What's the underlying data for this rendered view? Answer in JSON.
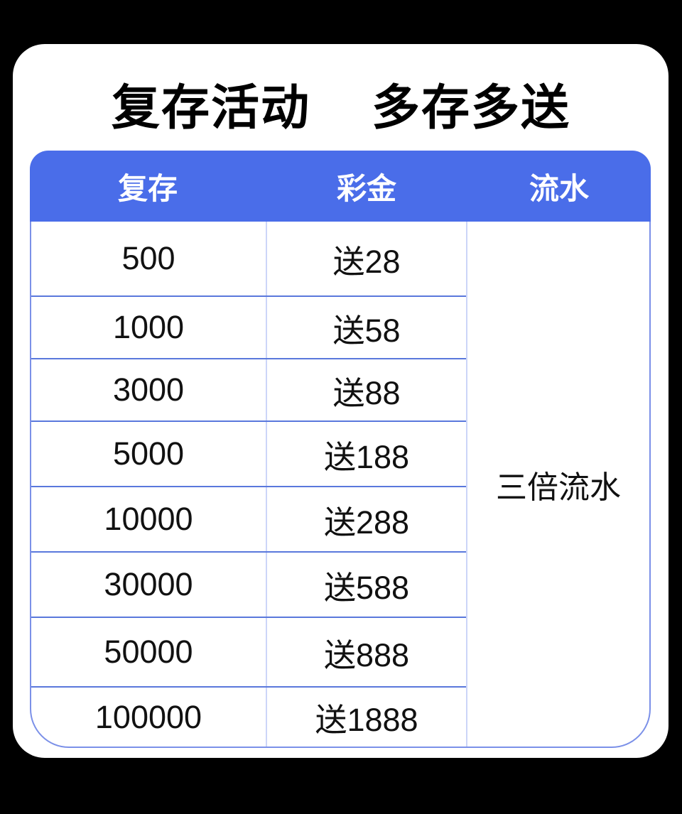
{
  "colors": {
    "page-bg": "#000000",
    "card-bg": "#ffffff",
    "header-bg": "#4a6de9",
    "header-text": "#ffffff",
    "row-line": "#5a78dc",
    "col-line": "#ccd5f8",
    "outer-line": "#7b90e8",
    "cell-text": "#111111",
    "title-text": "#000000"
  },
  "title": {
    "part1": "复存活动",
    "part2": "多存多送"
  },
  "table": {
    "columns": [
      {
        "key": "deposit",
        "label": "复存"
      },
      {
        "key": "bonus",
        "label": "彩金"
      },
      {
        "key": "turnover",
        "label": "流水"
      }
    ],
    "rows": [
      {
        "deposit": "500",
        "bonus": "送28"
      },
      {
        "deposit": "1000",
        "bonus": "送58"
      },
      {
        "deposit": "3000",
        "bonus": "送88"
      },
      {
        "deposit": "5000",
        "bonus": "送188"
      },
      {
        "deposit": "10000",
        "bonus": "送288"
      },
      {
        "deposit": "30000",
        "bonus": "送588"
      },
      {
        "deposit": "50000",
        "bonus": "送888"
      },
      {
        "deposit": "100000",
        "bonus": "送1888"
      }
    ],
    "turnover_note": "三倍流水"
  }
}
